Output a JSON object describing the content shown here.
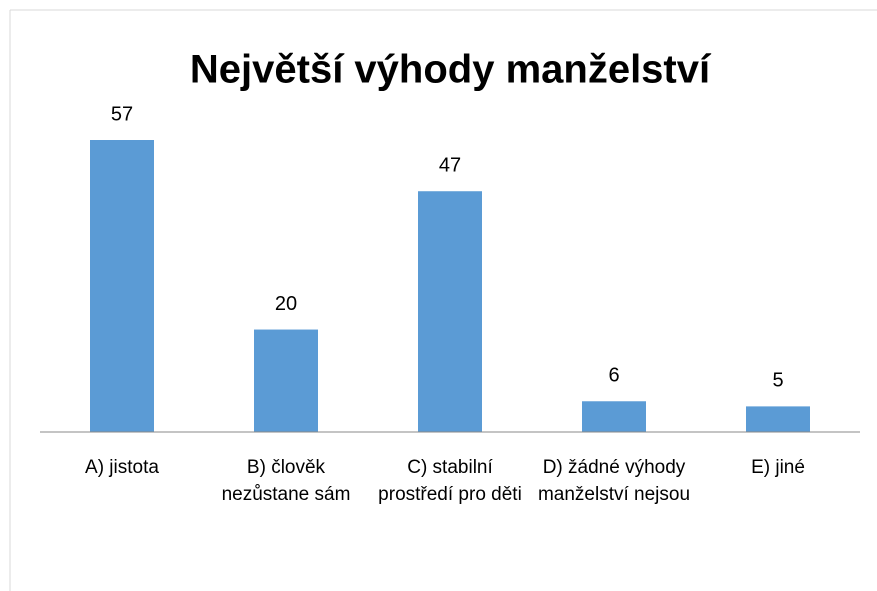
{
  "chart_data": {
    "type": "bar",
    "title": "Největší výhody manželství",
    "categories": [
      "A) jistota",
      "B) člověk nezůstane sám",
      "C) stabilní prostředí pro děti",
      "D) žádné výhody manželství nejsou",
      "E) jiné"
    ],
    "values": [
      57,
      20,
      47,
      6,
      5
    ],
    "color": "#5b9bd5"
  }
}
